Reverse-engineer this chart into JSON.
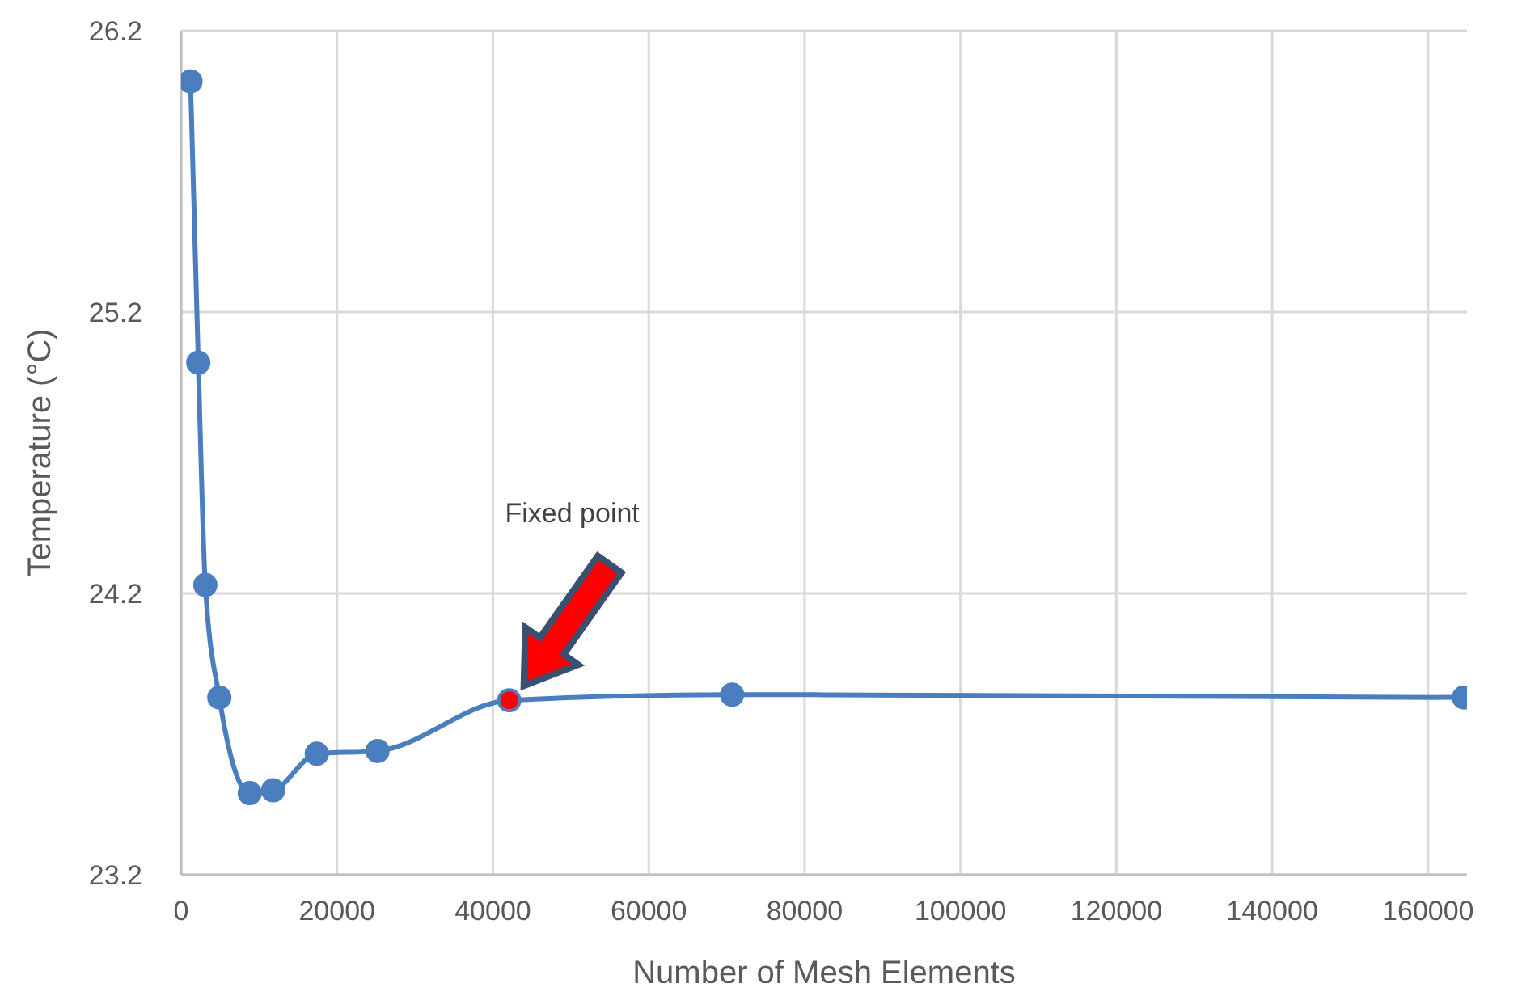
{
  "chart_data": {
    "type": "line",
    "xlabel": "Number of Mesh Elements",
    "ylabel": "Temperature (°C)",
    "x": [
      1200,
      2200,
      3100,
      4900,
      8800,
      11800,
      17400,
      25200,
      42100,
      70700,
      164600
    ],
    "series": [
      {
        "color": "#4a7ebf",
        "values": [
          26.02,
          25.02,
          24.23,
          23.83,
          23.49,
          23.5,
          23.63,
          23.64,
          23.82,
          23.84,
          23.83
        ],
        "colors": [
          "#4a7ebf",
          "#4a7ebf",
          "#4a7ebf",
          "#4a7ebf",
          "#4a7ebf",
          "#4a7ebf",
          "#4a7ebf",
          "#4a7ebf",
          "#ff0000",
          "#4a7ebf",
          "#4a7ebf"
        ]
      }
    ],
    "xlim": [
      0,
      165000
    ],
    "xticks": [
      0,
      20000,
      40000,
      60000,
      80000,
      100000,
      120000,
      140000,
      160000
    ],
    "ylim": [
      23.2,
      26.2
    ],
    "yticks": [
      23.2,
      24.2,
      25.2,
      26.2
    ],
    "grid": true,
    "marker": "circle",
    "line_style": "solid",
    "annotations": [
      "Fixed point"
    ]
  }
}
